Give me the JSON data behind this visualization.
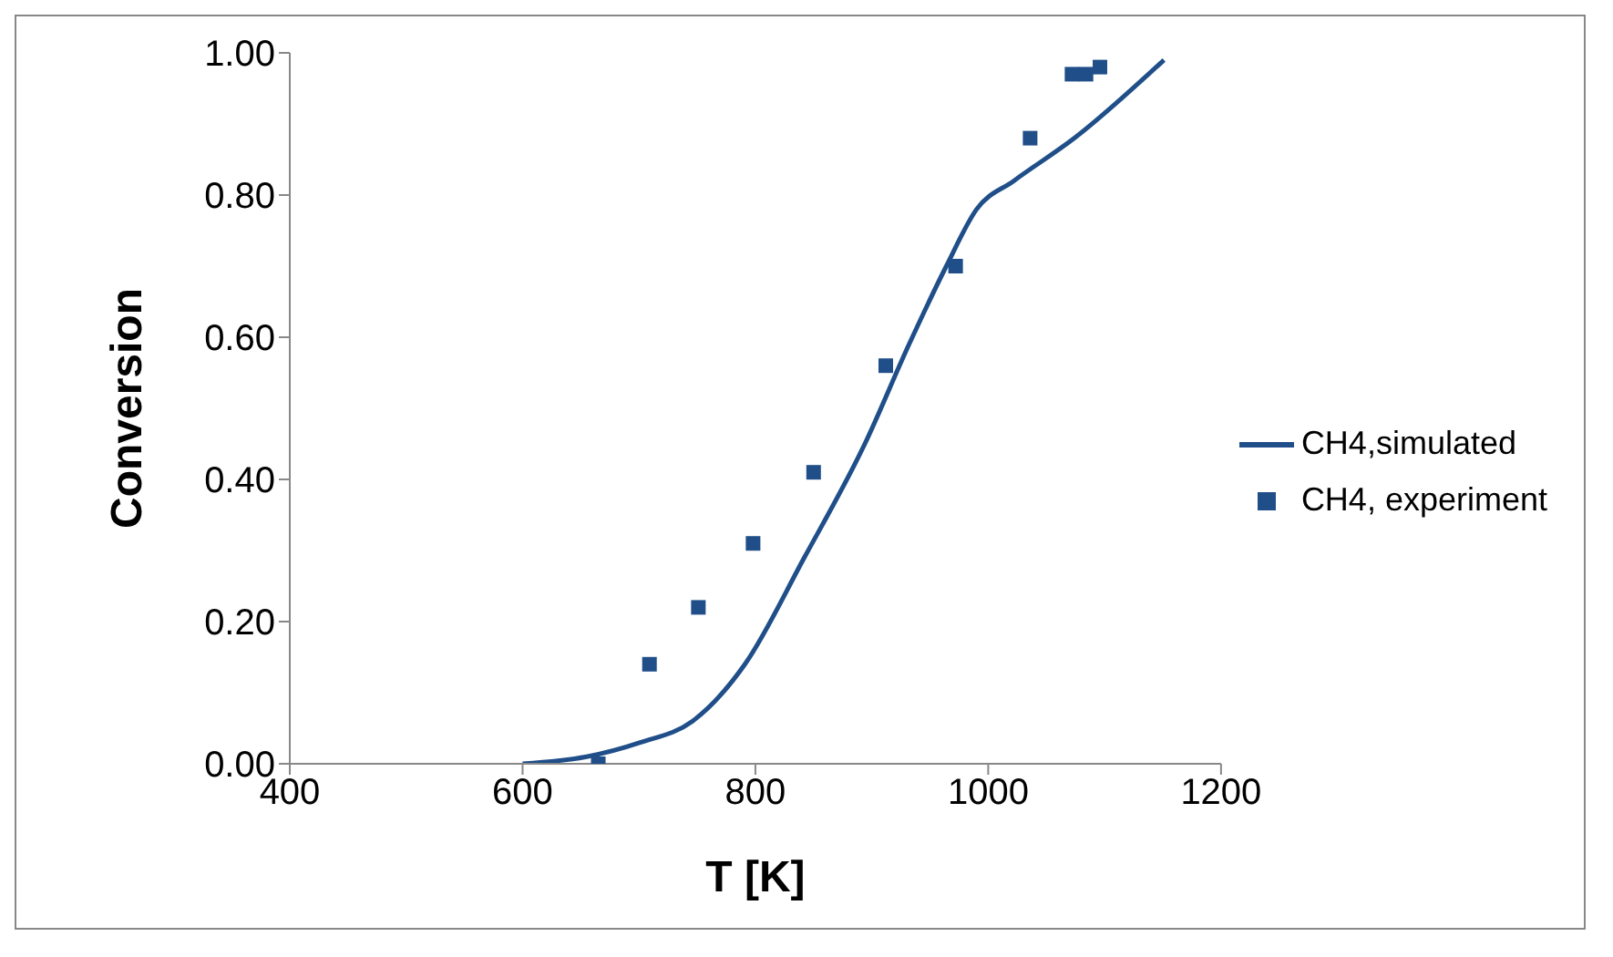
{
  "chart_data": {
    "type": "line",
    "xlabel": "T [K]",
    "ylabel": "Conversion",
    "xlim": [
      400,
      1200
    ],
    "xticks": [
      400,
      600,
      800,
      1000,
      1200
    ],
    "ylim": [
      0,
      1
    ],
    "yticks": [
      {
        "value": 0,
        "label": "0.00"
      },
      {
        "value": 0.2,
        "label": "0.20"
      },
      {
        "value": 0.4,
        "label": "0.40"
      },
      {
        "value": 0.6,
        "label": "0.60"
      },
      {
        "value": 0.8,
        "label": "0.80"
      },
      {
        "value": 1,
        "label": "1.00"
      }
    ],
    "legend": "right",
    "grid": false,
    "series": [
      {
        "name": "CH4,simulated",
        "type": "line",
        "color": "#1f4e89",
        "marker": "none",
        "line_style": "solid",
        "x": [
          600,
          655,
          701,
          746,
          791,
          842,
          894,
          932,
          964,
          990,
          1022,
          1074,
          1151
        ],
        "values": [
          0,
          0.01,
          0.03,
          0.06,
          0.14,
          0.29,
          0.45,
          0.59,
          0.7,
          0.78,
          0.82,
          0.88,
          0.99
        ]
      },
      {
        "name": "CH4, experiment",
        "type": "scatter",
        "color": "#1f4e89",
        "marker": "square",
        "x": [
          665,
          709,
          751,
          798,
          850,
          912,
          972,
          1036,
          1072,
          1084,
          1096
        ],
        "values": [
          0,
          0.14,
          0.22,
          0.31,
          0.41,
          0.56,
          0.7,
          0.88,
          0.97,
          0.97,
          0.98
        ]
      }
    ]
  }
}
